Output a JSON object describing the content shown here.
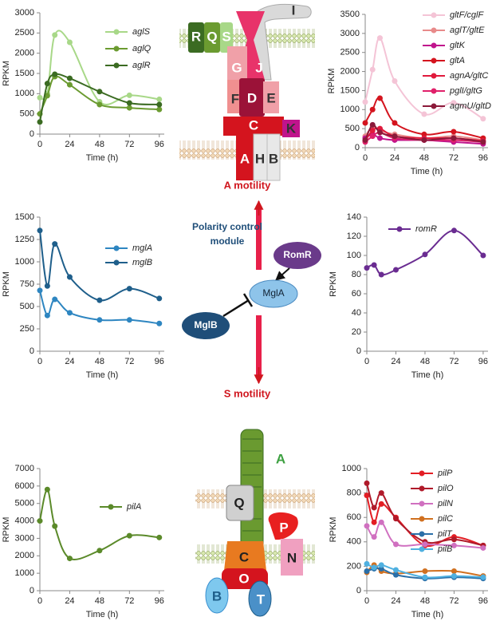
{
  "chart_data": [
    {
      "type": "line",
      "xlabel": "Time (h)",
      "ylabel": "RPKM",
      "x": [
        0,
        6,
        12,
        24,
        48,
        72,
        96
      ],
      "xlim": [
        0,
        100
      ],
      "xticks": [
        0,
        24,
        48,
        72,
        96
      ],
      "ylim": [
        0,
        3000
      ],
      "yticks": [
        0,
        500,
        1000,
        1500,
        2000,
        2500,
        3000
      ],
      "series": [
        {
          "name": "aglS",
          "color": "#a8d888",
          "values": [
            900,
            1000,
            2450,
            2270,
            800,
            960,
            860
          ]
        },
        {
          "name": "aglQ",
          "color": "#6b9b30",
          "values": [
            500,
            950,
            1420,
            1220,
            730,
            650,
            610
          ]
        },
        {
          "name": "aglR",
          "color": "#3b6b22",
          "values": [
            300,
            1250,
            1480,
            1380,
            1050,
            770,
            730
          ]
        }
      ]
    },
    {
      "type": "line",
      "xlabel": "Time (h)",
      "ylabel": "RPKM",
      "x": [
        0,
        6,
        12,
        24,
        48,
        72,
        96
      ],
      "xlim": [
        0,
        100
      ],
      "xticks": [
        0,
        24,
        48,
        72,
        96
      ],
      "ylim": [
        0,
        3500
      ],
      "yticks": [
        0,
        500,
        1000,
        1500,
        2000,
        2500,
        3000,
        3500
      ],
      "series": [
        {
          "name": "gltF/cglF",
          "color": "#f4c4d6",
          "values": [
            1200,
            2050,
            2880,
            1750,
            880,
            1180,
            760
          ]
        },
        {
          "name": "aglT/gltE",
          "color": "#e88a8a",
          "values": [
            300,
            550,
            450,
            350,
            250,
            300,
            200
          ]
        },
        {
          "name": "gltK",
          "color": "#c0148c",
          "values": [
            250,
            350,
            250,
            200,
            200,
            150,
            100
          ]
        },
        {
          "name": "gltA",
          "color": "#d4141e",
          "values": [
            650,
            1000,
            1300,
            650,
            350,
            420,
            250
          ]
        },
        {
          "name": "agnA/gltC",
          "color": "#e01a3c",
          "values": [
            180,
            450,
            500,
            300,
            250,
            250,
            180
          ]
        },
        {
          "name": "pglI/gltG",
          "color": "#e0206a",
          "values": [
            150,
            300,
            400,
            250,
            200,
            200,
            150
          ]
        },
        {
          "name": "agmU/gltD",
          "color": "#8b1a3a",
          "values": [
            200,
            600,
            400,
            300,
            200,
            250,
            150
          ]
        }
      ]
    },
    {
      "type": "line",
      "xlabel": "Time (h)",
      "ylabel": "RPKM",
      "x": [
        0,
        6,
        12,
        24,
        48,
        72,
        96
      ],
      "xlim": [
        0,
        100
      ],
      "xticks": [
        0,
        24,
        48,
        72,
        96
      ],
      "ylim": [
        0,
        1500
      ],
      "yticks": [
        0,
        250,
        500,
        750,
        1000,
        1250,
        1500
      ],
      "series": [
        {
          "name": "mglA",
          "color": "#2e86c1",
          "values": [
            680,
            400,
            580,
            430,
            350,
            350,
            310
          ]
        },
        {
          "name": "mglB",
          "color": "#1f5f8b",
          "values": [
            1350,
            730,
            1200,
            830,
            570,
            700,
            590
          ]
        }
      ]
    },
    {
      "type": "line",
      "xlabel": "Time (h)",
      "ylabel": "RPKM",
      "x": [
        0,
        6,
        12,
        24,
        48,
        72,
        96
      ],
      "xlim": [
        0,
        100
      ],
      "xticks": [
        0,
        24,
        48,
        72,
        96
      ],
      "ylim": [
        0,
        140
      ],
      "yticks": [
        0,
        20,
        40,
        60,
        80,
        100,
        120,
        140
      ],
      "series": [
        {
          "name": "romR",
          "color": "#6a2c91",
          "values": [
            87,
            90,
            80,
            85,
            101,
            126,
            100
          ]
        }
      ]
    },
    {
      "type": "line",
      "xlabel": "Time (h)",
      "ylabel": "RPKM",
      "x": [
        0,
        6,
        12,
        24,
        48,
        72,
        96
      ],
      "xlim": [
        0,
        100
      ],
      "xticks": [
        0,
        24,
        48,
        72,
        96
      ],
      "ylim": [
        0,
        7000
      ],
      "yticks": [
        0,
        1000,
        2000,
        3000,
        4000,
        5000,
        6000,
        7000
      ],
      "series": [
        {
          "name": "pilA",
          "color": "#5b8a2a",
          "values": [
            4000,
            5800,
            3700,
            1850,
            2300,
            3150,
            3050
          ]
        }
      ]
    },
    {
      "type": "line",
      "xlabel": "Time (h)",
      "ylabel": "RPKM",
      "x": [
        0,
        6,
        12,
        24,
        48,
        72,
        96
      ],
      "xlim": [
        0,
        100
      ],
      "xticks": [
        0,
        24,
        48,
        72,
        96
      ],
      "ylim": [
        0,
        1000
      ],
      "yticks": [
        0,
        200,
        400,
        600,
        800,
        1000
      ],
      "series": [
        {
          "name": "pilP",
          "color": "#e31e24",
          "values": [
            780,
            560,
            710,
            600,
            370,
            440,
            370
          ]
        },
        {
          "name": "pilO",
          "color": "#b01a2a",
          "values": [
            880,
            680,
            800,
            590,
            400,
            420,
            370
          ]
        },
        {
          "name": "pilN",
          "color": "#d070c0",
          "values": [
            530,
            440,
            560,
            380,
            380,
            370,
            350
          ]
        },
        {
          "name": "pilC",
          "color": "#d07020",
          "values": [
            150,
            210,
            160,
            140,
            160,
            160,
            120
          ]
        },
        {
          "name": "pilT",
          "color": "#2a6fa8",
          "values": [
            160,
            180,
            180,
            130,
            100,
            110,
            100
          ]
        },
        {
          "name": "pilB",
          "color": "#4fb0e0",
          "values": [
            220,
            190,
            210,
            170,
            110,
            120,
            110
          ]
        }
      ]
    }
  ],
  "diagram": {
    "top_proteins": [
      "R",
      "Q",
      "S",
      "I",
      "G",
      "J",
      "F",
      "D",
      "E",
      "C",
      "K",
      "A",
      "H",
      "B"
    ],
    "a_motility": "A motility",
    "s_motility": "S motility",
    "polarity_module": [
      "Polarity control",
      "module"
    ],
    "romr": "RomR",
    "mgla": "MglA",
    "mglb": "MglB",
    "pilus_label": "A",
    "bottom_proteins": [
      "Q",
      "P",
      "C",
      "N",
      "O",
      "B",
      "T"
    ]
  }
}
